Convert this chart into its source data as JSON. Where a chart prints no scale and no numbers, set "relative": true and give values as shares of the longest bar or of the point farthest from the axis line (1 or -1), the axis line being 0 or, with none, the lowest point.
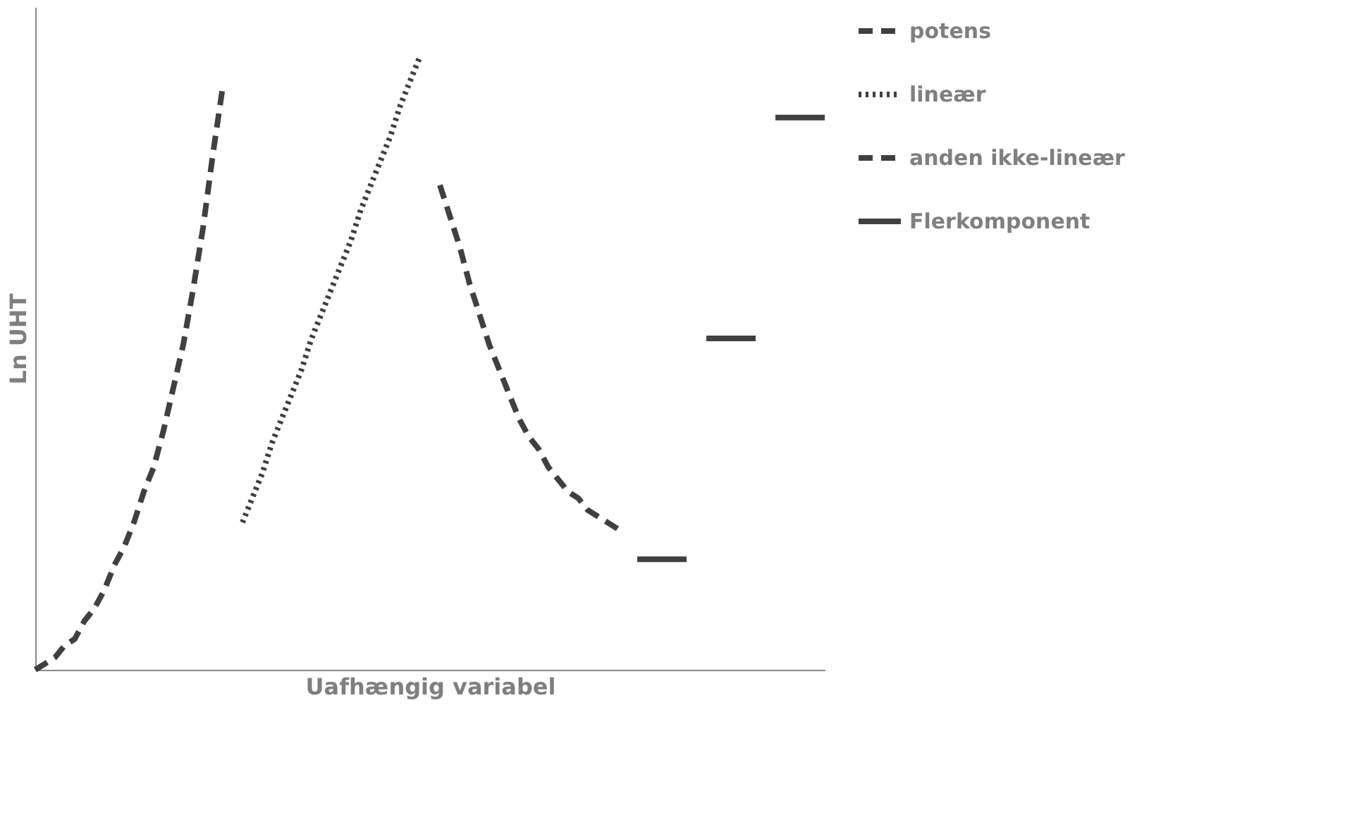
{
  "chart_data": {
    "type": "line",
    "relative": true,
    "xlabel": "Uafhængig variabel",
    "ylabel": "Ln UHT",
    "tick_labels": false,
    "grid": false,
    "legend": "right",
    "marker": "none",
    "categories": [
      null,
      null,
      null,
      null,
      null,
      null,
      null,
      null,
      null,
      null,
      null,
      null,
      null,
      null,
      null,
      null,
      null,
      null,
      null,
      null,
      null,
      null,
      null,
      null,
      null,
      null,
      null,
      null,
      null,
      null,
      null,
      null,
      null,
      null,
      null,
      null,
      null,
      null,
      null,
      null,
      null,
      null,
      null,
      null,
      null,
      null,
      null,
      null,
      null,
      null,
      null,
      null,
      null,
      null,
      null,
      null,
      null,
      null,
      null,
      null,
      null,
      null,
      null,
      null,
      null,
      null,
      null,
      null,
      null,
      null,
      null,
      null,
      null,
      null,
      null,
      null,
      null,
      null,
      null,
      null,
      null
    ],
    "series": [
      {
        "name": "potens",
        "color": "#404040",
        "line_style": "dashed",
        "values": [
          0,
          0.01,
          0.02,
          0.04,
          0.05,
          0.08,
          0.1,
          0.13,
          0.17,
          0.2,
          0.24,
          0.29,
          0.33,
          0.39,
          0.46,
          0.53,
          0.62,
          0.72,
          0.84,
          0.95,
          null,
          null,
          null,
          null,
          null,
          null,
          null,
          null,
          null,
          null,
          null,
          null,
          null,
          null,
          null,
          null,
          null,
          null,
          null,
          null,
          null,
          null,
          null,
          null,
          null,
          null,
          null,
          null,
          null,
          null,
          null,
          null,
          null,
          null,
          null,
          null,
          null,
          null,
          null,
          null,
          null,
          null,
          null,
          null,
          null,
          null,
          null,
          null,
          null,
          null,
          null,
          null,
          null,
          null,
          null,
          null,
          null,
          null,
          null,
          null,
          null
        ]
      },
      {
        "name": "lineær",
        "color": "#404040",
        "line_style": "dotted",
        "values": [
          null,
          null,
          null,
          null,
          null,
          null,
          null,
          null,
          null,
          null,
          null,
          null,
          null,
          null,
          null,
          null,
          null,
          null,
          null,
          null,
          null,
          0.24,
          0.28,
          0.32,
          0.37,
          0.41,
          0.45,
          0.49,
          0.54,
          0.58,
          0.62,
          0.66,
          0.7,
          0.75,
          0.79,
          0.83,
          0.87,
          0.92,
          0.96,
          1.0,
          null,
          null,
          null,
          null,
          null,
          null,
          null,
          null,
          null,
          null,
          null,
          null,
          null,
          null,
          null,
          null,
          null,
          null,
          null,
          null,
          null,
          null,
          null,
          null,
          null,
          null,
          null,
          null,
          null,
          null,
          null,
          null,
          null,
          null,
          null,
          null,
          null,
          null,
          null,
          null,
          null
        ]
      },
      {
        "name": "anden ikke-lineær",
        "color": "#404040",
        "line_style": "dashed",
        "values": [
          null,
          null,
          null,
          null,
          null,
          null,
          null,
          null,
          null,
          null,
          null,
          null,
          null,
          null,
          null,
          null,
          null,
          null,
          null,
          null,
          null,
          null,
          null,
          null,
          null,
          null,
          null,
          null,
          null,
          null,
          null,
          null,
          null,
          null,
          null,
          null,
          null,
          null,
          null,
          null,
          null,
          0.79,
          0.74,
          0.69,
          0.63,
          0.58,
          0.53,
          0.49,
          0.45,
          0.41,
          0.38,
          0.36,
          0.33,
          0.31,
          0.29,
          0.28,
          0.26,
          0.25,
          0.24,
          0.23,
          null,
          null,
          null,
          null,
          null,
          null,
          null,
          null,
          null,
          null,
          null,
          null,
          null,
          null,
          null,
          null,
          null,
          null,
          null,
          null,
          null
        ]
      },
      {
        "name": "Flerkomponent",
        "color": "#404040",
        "line_style": "solid",
        "values": [
          null,
          null,
          null,
          null,
          null,
          null,
          null,
          null,
          null,
          null,
          null,
          null,
          null,
          null,
          null,
          null,
          null,
          null,
          null,
          null,
          null,
          null,
          null,
          null,
          null,
          null,
          null,
          null,
          null,
          null,
          null,
          null,
          null,
          null,
          null,
          null,
          null,
          null,
          null,
          null,
          null,
          null,
          null,
          null,
          null,
          null,
          null,
          null,
          null,
          null,
          null,
          null,
          null,
          null,
          null,
          null,
          null,
          null,
          null,
          null,
          null,
          0.18,
          0.18,
          0.18,
          0.18,
          0.18,
          0.18,
          null,
          0.54,
          0.54,
          0.54,
          0.54,
          0.54,
          0.54,
          null,
          0.9,
          0.9,
          0.9,
          0.9,
          0.9,
          0.9
        ]
      }
    ]
  }
}
